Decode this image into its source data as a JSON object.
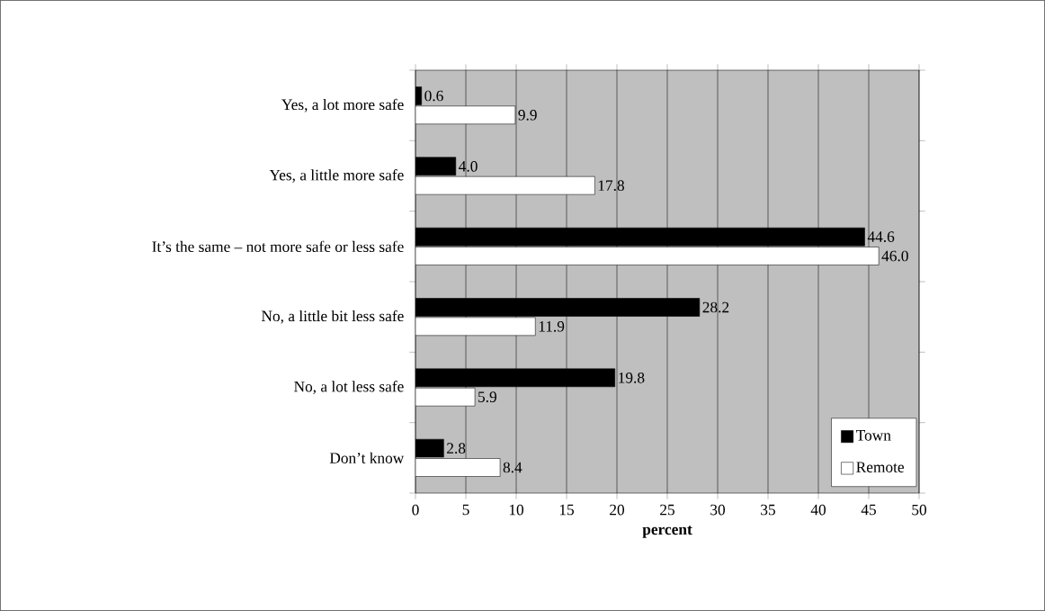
{
  "chart_data": {
    "type": "bar",
    "orientation": "horizontal",
    "xlabel": "percent",
    "categories": [
      "Yes, a lot more safe",
      "Yes, a little more safe",
      "It’s the same – not more safe or less safe",
      "No, a little bit less safe",
      "No, a lot less safe",
      "Don’t know"
    ],
    "series": [
      {
        "name": "Town",
        "color": "#000000",
        "values": [
          0.6,
          4.0,
          44.6,
          28.2,
          19.8,
          2.8
        ],
        "value_labels": [
          "0.6",
          "4.0",
          "44.6",
          "28.2",
          "19.8",
          "2.8"
        ]
      },
      {
        "name": "Remote",
        "color": "#ffffff",
        "values": [
          9.9,
          17.8,
          46.0,
          11.9,
          5.9,
          8.4
        ],
        "value_labels": [
          "9.9",
          "17.8",
          "46.0",
          "11.9",
          "5.9",
          "8.4"
        ]
      }
    ],
    "xlim": [
      0,
      50
    ],
    "xticks": [
      0,
      5,
      10,
      15,
      20,
      25,
      30,
      35,
      40,
      45,
      50
    ],
    "grid": "x",
    "legend": "bottom right"
  }
}
